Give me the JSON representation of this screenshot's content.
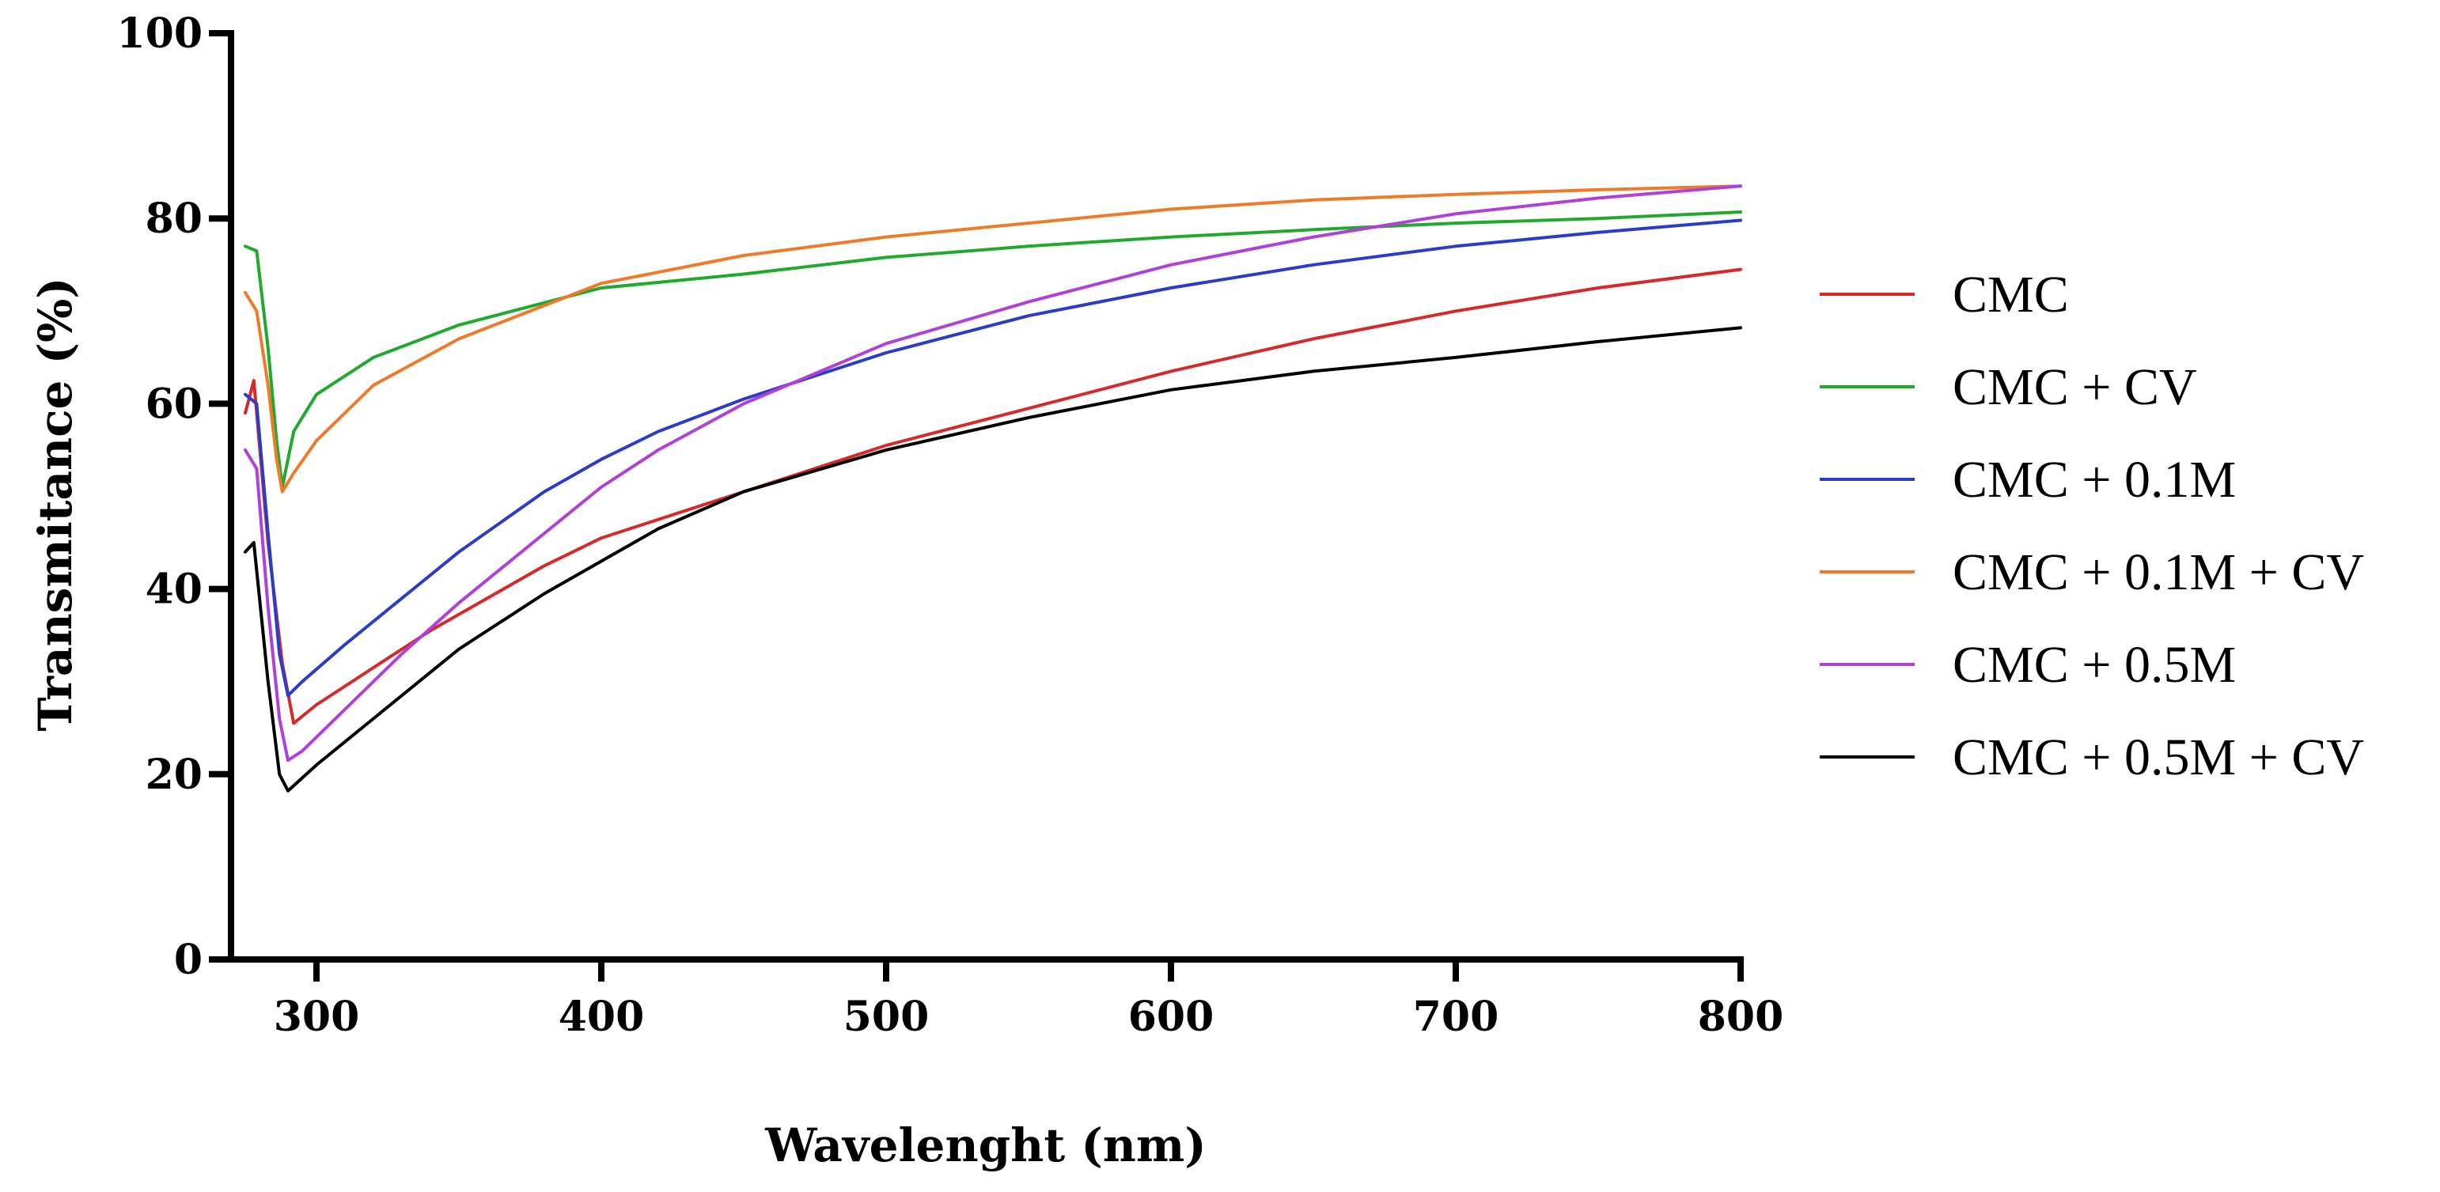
{
  "chart_data": {
    "type": "line",
    "title": "",
    "xlabel": "Wavelenght (nm)",
    "ylabel": "Transmitance (%)",
    "xlim": [
      270,
      800
    ],
    "ylim": [
      0,
      100
    ],
    "xticks": [
      300,
      400,
      500,
      600,
      700,
      800
    ],
    "yticks": [
      0,
      20,
      40,
      60,
      80,
      100
    ],
    "xtick_labels": [
      "300",
      "400",
      "500",
      "600",
      "700",
      "800"
    ],
    "ytick_labels": [
      "0",
      "20",
      "40",
      "60",
      "80",
      "100"
    ],
    "legend_position": "right",
    "series": [
      {
        "name": "CMC",
        "color": "#d62a2a",
        "x": [
          275,
          278,
          283,
          288,
          292,
          300,
          320,
          340,
          360,
          380,
          400,
          450,
          500,
          550,
          600,
          650,
          700,
          750,
          800
        ],
        "y": [
          59,
          62.5,
          45,
          32,
          25.5,
          27.5,
          31.5,
          35.5,
          39,
          42.5,
          45.5,
          50.5,
          55.5,
          59.5,
          63.5,
          67,
          70,
          72.5,
          74.5
        ]
      },
      {
        "name": "CMC + CV",
        "color": "#1faa2e",
        "x": [
          275,
          279,
          283,
          286,
          288,
          292,
          300,
          320,
          350,
          400,
          450,
          500,
          550,
          600,
          650,
          700,
          750,
          800
        ],
        "y": [
          77,
          76.5,
          66,
          56,
          51,
          57,
          61,
          65,
          68.5,
          72.5,
          74,
          75.8,
          77,
          78,
          78.8,
          79.5,
          80,
          80.7
        ]
      },
      {
        "name": "CMC + 0.1M",
        "color": "#2a3cc8",
        "x": [
          275,
          279,
          283,
          287,
          290,
          295,
          310,
          330,
          350,
          380,
          400,
          420,
          450,
          500,
          550,
          600,
          650,
          700,
          750,
          800
        ],
        "y": [
          61,
          60,
          46,
          33,
          28.5,
          30,
          34,
          39,
          44,
          50.5,
          54,
          57,
          60.5,
          65.5,
          69.5,
          72.5,
          75,
          77,
          78.5,
          79.8
        ]
      },
      {
        "name": "CMC + 0.1M + CV",
        "color": "#ef7a2a",
        "x": [
          275,
          279,
          283,
          286,
          288,
          292,
          300,
          320,
          350,
          400,
          450,
          500,
          550,
          600,
          650,
          700,
          750,
          800
        ],
        "y": [
          72,
          70,
          62,
          54,
          50.5,
          52.5,
          56,
          62,
          67,
          73,
          76,
          78,
          79.5,
          81,
          82,
          82.6,
          83.1,
          83.5
        ]
      },
      {
        "name": "CMC + 0.5M",
        "color": "#b040d8",
        "x": [
          275,
          279,
          283,
          287,
          290,
          295,
          310,
          330,
          350,
          380,
          400,
          420,
          450,
          500,
          550,
          600,
          650,
          700,
          750,
          800
        ],
        "y": [
          55,
          53,
          38,
          26,
          21.5,
          22.5,
          27,
          33,
          38.5,
          46,
          51,
          55,
          60,
          66.5,
          71,
          75,
          78,
          80.5,
          82.2,
          83.5
        ]
      },
      {
        "name": "CMC + 0.5M + CV",
        "color": "#000000",
        "x": [
          275,
          278,
          283,
          287,
          290,
          300,
          320,
          350,
          380,
          400,
          420,
          450,
          500,
          550,
          600,
          650,
          700,
          750,
          800
        ],
        "y": [
          44,
          45,
          30,
          20,
          18.2,
          21,
          26,
          33.5,
          39.5,
          43,
          46.5,
          50.5,
          55,
          58.5,
          61.5,
          63.5,
          65,
          66.7,
          68.2
        ]
      }
    ]
  }
}
